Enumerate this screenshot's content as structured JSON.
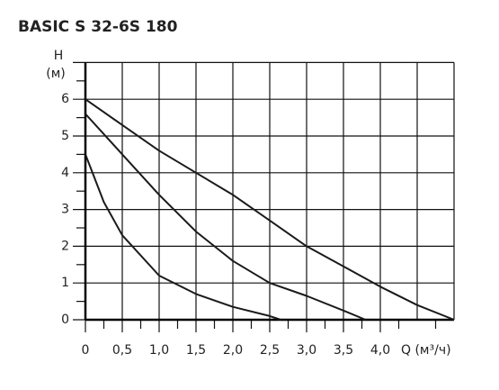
{
  "chart_data": {
    "type": "line",
    "title": "BASIC S 32-6S 180",
    "ylabel": "H",
    "yunit": "(м)",
    "xlabel": "Q (м³/ч)",
    "xlim": [
      0,
      5
    ],
    "ylim": [
      0,
      7
    ],
    "xticks": [
      0,
      {
        "value": 0.5,
        "label": "0,5"
      },
      {
        "value": 1,
        "label": "1,0"
      },
      {
        "value": 1.5,
        "label": "1,5"
      },
      {
        "value": 2,
        "label": "2,0"
      },
      {
        "value": 2.5,
        "label": "2,5"
      },
      {
        "value": 3,
        "label": "3,0"
      },
      {
        "value": 3.5,
        "label": "3,5"
      },
      {
        "value": 4,
        "label": "4,0"
      }
    ],
    "xgrid_extra": [
      4.5,
      5
    ],
    "yticks": [
      0,
      1,
      2,
      3,
      4,
      5,
      6
    ],
    "xminorticks": [
      0.25,
      0.75,
      1.25,
      1.75,
      2.25,
      2.75,
      3.25,
      3.75,
      4.25,
      4.75
    ],
    "yminorticks": [
      0.5,
      1.5,
      2.5,
      3.5,
      4.5,
      5.5,
      6.5
    ],
    "grid": true,
    "series": [
      {
        "color": "#1a1a1a",
        "x": [
          0,
          0.5,
          1,
          1.5,
          2,
          2.5,
          3,
          3.5,
          4,
          4.5,
          5
        ],
        "values": [
          6.0,
          5.3,
          4.6,
          4.0,
          3.4,
          2.7,
          2.0,
          1.45,
          0.9,
          0.4,
          0
        ]
      },
      {
        "color": "#1a1a1a",
        "x": [
          0,
          0.5,
          1,
          1.5,
          2,
          2.5,
          3,
          3.5,
          3.8
        ],
        "values": [
          5.6,
          4.5,
          3.4,
          2.4,
          1.6,
          1.0,
          0.65,
          0.25,
          0
        ]
      },
      {
        "color": "#1a1a1a",
        "x": [
          0,
          0.25,
          0.5,
          1,
          1.5,
          2,
          2.5,
          2.65
        ],
        "values": [
          4.5,
          3.2,
          2.3,
          1.2,
          0.7,
          0.35,
          0.1,
          0
        ]
      }
    ]
  }
}
